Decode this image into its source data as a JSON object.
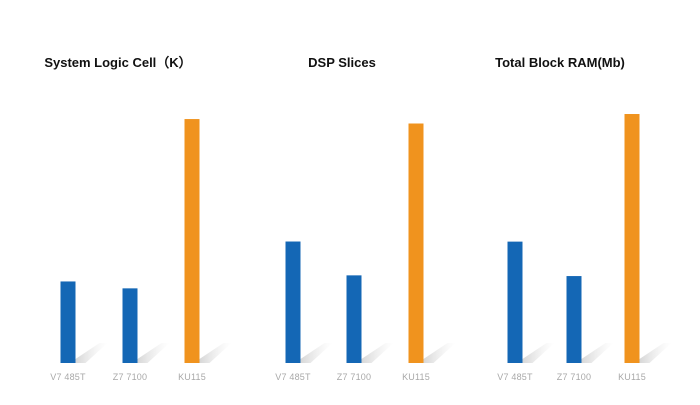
{
  "colors": {
    "blue": "#1467b5",
    "orange": "#f0931e",
    "label": "#a8a8a8",
    "title": "#111111"
  },
  "chart_data": [
    {
      "type": "bar",
      "title": "System Logic Cell（K）",
      "categories": [
        "V7 485T",
        "Z7 7100",
        "KU115"
      ],
      "values": [
        485,
        444,
        1451
      ],
      "bar_colors": [
        "#1467b5",
        "#1467b5",
        "#f0931e"
      ],
      "ylim": [
        0,
        1600
      ],
      "grid": false,
      "legend": "none"
    },
    {
      "type": "bar",
      "title": "DSP Slices",
      "categories": [
        "V7 485T",
        "Z7 7100",
        "KU115"
      ],
      "values": [
        2800,
        2020,
        5520
      ],
      "bar_colors": [
        "#1467b5",
        "#1467b5",
        "#f0931e"
      ],
      "ylim": [
        0,
        6200
      ],
      "grid": false,
      "legend": "none"
    },
    {
      "type": "bar",
      "title": "Total Block RAM(Mb)",
      "categories": [
        "V7 485T",
        "Z7 7100",
        "KU115"
      ],
      "values": [
        37,
        26.5,
        75.9
      ],
      "bar_colors": [
        "#1467b5",
        "#1467b5",
        "#f0931e"
      ],
      "ylim": [
        0,
        82
      ],
      "grid": false,
      "legend": "none"
    }
  ]
}
